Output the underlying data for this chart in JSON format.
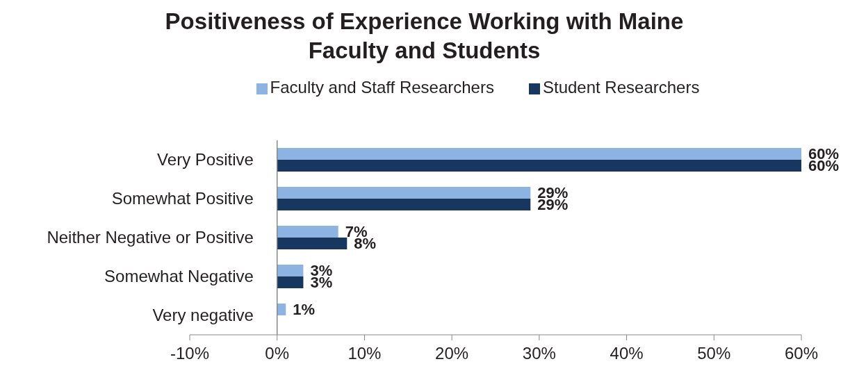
{
  "chart_data": {
    "type": "bar",
    "orientation": "horizontal",
    "title": "Positiveness of Experience Working with Maine Faculty and Students",
    "categories": [
      "Very Positive",
      "Somewhat Positive",
      "Neither Negative or Positive",
      "Somewhat Negative",
      "Very negative"
    ],
    "series": [
      {
        "name": "Faculty and Staff Researchers",
        "color": "#8db3e2",
        "values": [
          60,
          29,
          7,
          3,
          1
        ],
        "value_labels": [
          "60%",
          "29%",
          "7%",
          "3%",
          "1%"
        ]
      },
      {
        "name": "Student Researchers",
        "color": "#17375e",
        "values": [
          60,
          29,
          8,
          3,
          null
        ],
        "value_labels": [
          "60%",
          "29%",
          "8%",
          "3%",
          null
        ]
      }
    ],
    "xlim": [
      -10,
      60
    ],
    "xticks": [
      {
        "value": -10,
        "label": "-10%"
      },
      {
        "value": 0,
        "label": "0%"
      },
      {
        "value": 10,
        "label": "10%"
      },
      {
        "value": 20,
        "label": "20%"
      },
      {
        "value": 30,
        "label": "30%"
      },
      {
        "value": 40,
        "label": "40%"
      },
      {
        "value": 50,
        "label": "50%"
      },
      {
        "value": 60,
        "label": "60%"
      }
    ],
    "grid": false,
    "legend": "top"
  }
}
